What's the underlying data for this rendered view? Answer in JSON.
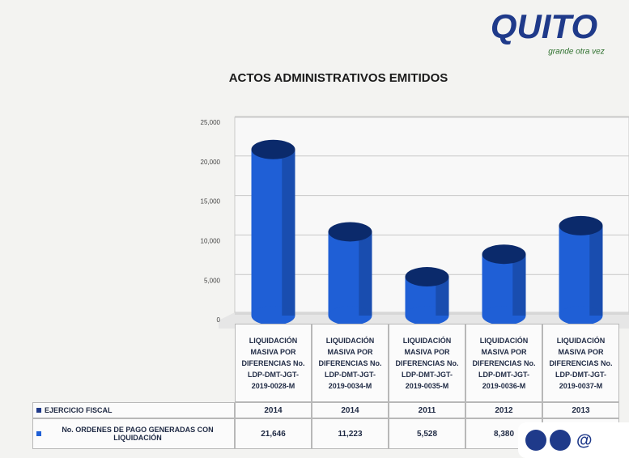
{
  "logo": {
    "name": "QUITO",
    "tagline": "grande otra vez"
  },
  "social_handle": "@",
  "chart_data": {
    "type": "cylinder",
    "title": "ACTOS ADMINISTRATIVOS EMITIDOS",
    "categories": [
      "LIQUIDACIÓN MASIVA POR DIFERENCIAS No. LDP-DMT-JGT-2019-0028-M",
      "LIQUIDACIÓN MASIVA POR DIFERENCIAS No. LDP-DMT-JGT-2019-0034-M",
      "LIQUIDACIÓN MASIVA POR DIFERENCIAS No. LDP-DMT-JGT-2019-0035-M",
      "LIQUIDACIÓN MASIVA POR DIFERENCIAS No. LDP-DMT-JGT-2019-0036-M",
      "LIQUIDACIÓN MASIVA POR DIFERENCIAS No. LDP-DMT-JGT-2019-0037-M"
    ],
    "fiscal_year": {
      "name": "EJERCICIO FISCAL",
      "color": "#1f3a8a",
      "values": [
        2014,
        2014,
        2011,
        2012,
        2013
      ]
    },
    "series": [
      {
        "name": "No. ORDENES DE PAGO GENERADAS CON LIQUIDACIÓN",
        "color": "#1f5fd6",
        "values": [
          21646,
          11223,
          5528,
          8380,
          12000
        ],
        "value_labels": [
          "21,646",
          "11,223",
          "5,528",
          "8,380",
          null
        ]
      }
    ],
    "ylim": [
      0,
      25000
    ],
    "yticks": [
      0,
      {
        "value": 5000,
        "label": "5,000"
      },
      {
        "value": 10000,
        "label": "10,000"
      },
      {
        "value": 15000,
        "label": "15,000"
      },
      {
        "value": 20000,
        "label": "20,000"
      },
      {
        "value": 25000,
        "label": "25,000"
      }
    ],
    "grid": true
  }
}
